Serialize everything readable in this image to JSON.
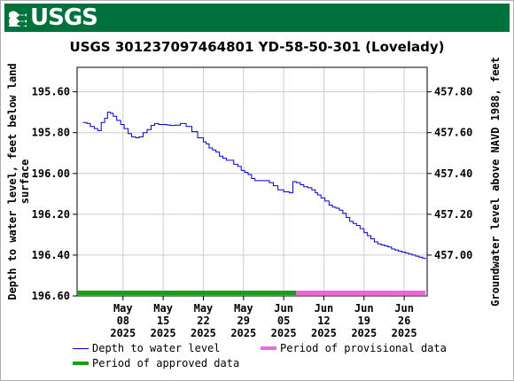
{
  "header": {
    "logo_text": "USGS",
    "brand_color": "#00703c"
  },
  "chart_data": {
    "type": "line",
    "title": "USGS 301237097464801 YD-58-50-301 (Lovelady)",
    "ylabel": "Depth to water level, feet below land surface",
    "ylabel_lines": [
      "Depth to water level, feet below land",
      "surface"
    ],
    "y2label": "Groundwater level above NAVD 1988, feet",
    "ylim": [
      196.6,
      195.48
    ],
    "y_inverted": true,
    "y_ticks": [
      195.6,
      195.8,
      196.0,
      196.2,
      196.4,
      196.6
    ],
    "y_tick_labels": [
      "195.60",
      "195.80",
      "196.00",
      "196.20",
      "196.40",
      "196.60"
    ],
    "y2_ticks": [
      457.8,
      457.6,
      457.4,
      457.2,
      457.0
    ],
    "y2_tick_labels": [
      "457.80",
      "457.60",
      "457.40",
      "457.20",
      "457.00"
    ],
    "y2_offset": 653.4,
    "xlim": [
      0,
      86
    ],
    "x_unit": "days since 2025-05-01",
    "x_ticks": [
      {
        "x": 8,
        "lines": [
          "May",
          "08",
          "2025"
        ]
      },
      {
        "x": 15,
        "lines": [
          "May",
          "15",
          "2025"
        ]
      },
      {
        "x": 22,
        "lines": [
          "May",
          "22",
          "2025"
        ]
      },
      {
        "x": 29,
        "lines": [
          "May",
          "29",
          "2025"
        ]
      },
      {
        "x": 36,
        "lines": [
          "Jun",
          "05",
          "2025"
        ]
      },
      {
        "x": 43,
        "lines": [
          "Jun",
          "12",
          "2025"
        ]
      },
      {
        "x": 50,
        "lines": [
          "Jun",
          "19",
          "2025"
        ]
      },
      {
        "x": 57,
        "lines": [
          "Jun",
          "26",
          "2025"
        ]
      }
    ],
    "grid": true,
    "series": [
      {
        "name": "Depth to water level",
        "color": "#0000cc",
        "x": [
          1.0,
          1.7,
          2.3,
          3.0,
          3.6,
          4.2,
          4.8,
          5.3,
          5.8,
          6.3,
          6.9,
          7.6,
          8.2,
          8.9,
          9.5,
          10.2,
          10.8,
          11.5,
          12.2,
          12.9,
          13.5,
          14.2,
          14.9,
          15.6,
          16.2,
          17.0,
          18.0,
          19.0,
          20.0,
          21.0,
          22.0,
          22.5,
          23.0,
          23.6,
          24.2,
          24.8,
          25.4,
          26.0,
          26.6,
          27.3,
          28.0,
          28.6,
          29.2,
          29.8,
          30.4,
          31.0,
          31.6,
          32.2,
          32.9,
          33.5,
          34.2,
          35.0,
          36.0,
          37.0,
          37.6,
          38.2,
          38.9,
          39.5,
          40.2,
          40.9,
          41.5,
          41.9,
          42.5,
          43.2,
          43.9,
          44.5,
          45.1,
          45.7,
          46.3,
          46.9,
          47.5,
          48.1,
          48.7,
          49.3,
          50.0,
          50.6,
          51.2,
          51.8,
          52.4,
          53.0,
          53.6,
          54.2,
          54.8,
          55.4,
          56.0,
          56.6,
          57.2,
          57.8,
          58.4,
          59.0,
          59.6,
          60.2,
          60.7
        ],
        "values": [
          195.75,
          195.755,
          195.77,
          195.78,
          195.79,
          195.75,
          195.73,
          195.7,
          195.705,
          195.72,
          195.74,
          195.76,
          195.78,
          195.805,
          195.82,
          195.825,
          195.82,
          195.8,
          195.785,
          195.765,
          195.755,
          195.76,
          195.76,
          195.762,
          195.765,
          195.763,
          195.755,
          195.77,
          195.795,
          195.825,
          195.845,
          195.855,
          195.875,
          195.885,
          195.895,
          195.915,
          195.925,
          195.935,
          195.935,
          195.955,
          195.965,
          195.985,
          195.995,
          196.005,
          196.025,
          196.035,
          196.035,
          196.035,
          196.035,
          196.045,
          196.06,
          196.08,
          196.09,
          196.095,
          196.04,
          196.045,
          196.055,
          196.065,
          196.07,
          196.08,
          196.095,
          196.105,
          196.12,
          196.135,
          196.155,
          196.165,
          196.17,
          196.18,
          196.195,
          196.215,
          196.235,
          196.245,
          196.255,
          196.27,
          196.29,
          196.305,
          196.32,
          196.335,
          196.345,
          196.35,
          196.355,
          196.36,
          196.37,
          196.375,
          196.38,
          196.385,
          196.39,
          196.395,
          196.4,
          196.405,
          196.41,
          196.415,
          196.42
        ]
      }
    ],
    "bands": [
      {
        "name": "Period of approved data",
        "color": "#1a9e1a",
        "x0": 0,
        "x1": 38.2
      },
      {
        "name": "Period of provisional data",
        "color": "#ee66dd",
        "x0": 38.2,
        "x1": 60.7
      }
    ],
    "legend": {
      "placement": "bottom",
      "items": [
        {
          "label": "Depth to water level",
          "kind": "line",
          "color": "#0000cc"
        },
        {
          "label": "Period of provisional data",
          "kind": "band",
          "color": "#ee66dd"
        },
        {
          "label": "Period of approved data",
          "kind": "band",
          "color": "#1a9e1a"
        }
      ]
    }
  }
}
